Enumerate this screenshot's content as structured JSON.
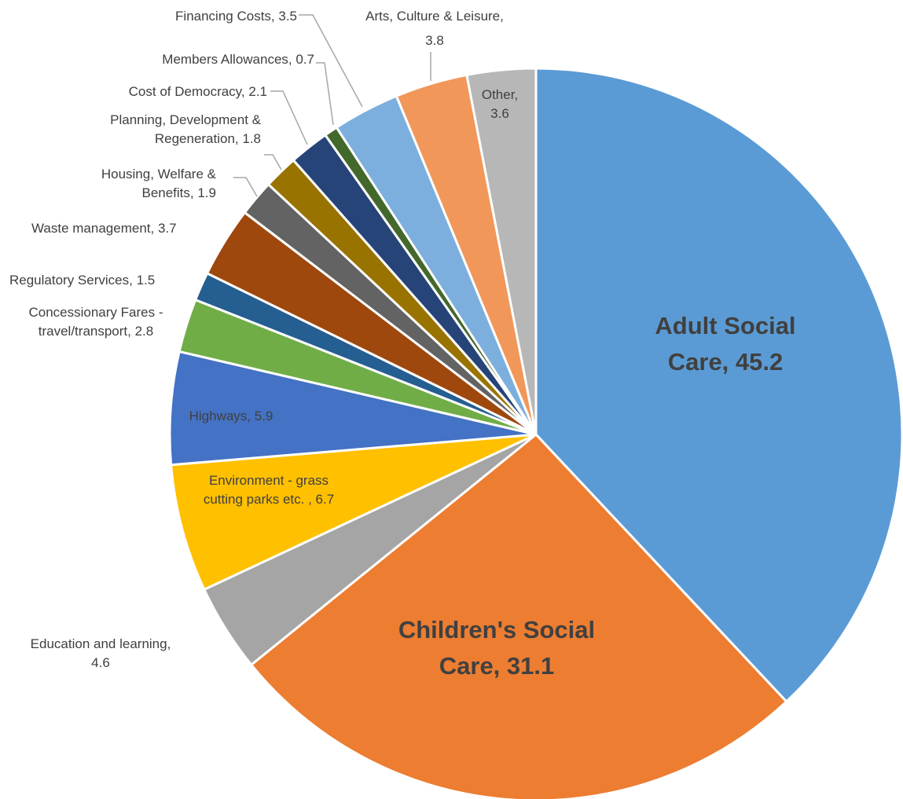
{
  "chart_data": {
    "type": "pie",
    "title": "",
    "grid": false,
    "legend": "none",
    "slices": [
      {
        "name": "Adult Social Care",
        "value": 45.2,
        "color": "#5b9bd5",
        "label_lines": [
          "Adult Social",
          "Care, 45.2"
        ]
      },
      {
        "name": "Children's Social Care",
        "value": 31.1,
        "color": "#ed7d31",
        "label_lines": [
          "Children's Social",
          "Care, 31.1"
        ]
      },
      {
        "name": "Education and learning",
        "value": 4.6,
        "color": "#a5a5a5",
        "label_lines": [
          "Education and learning,",
          "4.6"
        ]
      },
      {
        "name": "Environment - grass cutting parks etc.",
        "value": 6.7,
        "color": "#ffc000",
        "label_lines": [
          "Environment - grass",
          "cutting parks etc. , 6.7"
        ]
      },
      {
        "name": "Highways",
        "value": 5.9,
        "color": "#4472c4",
        "label_lines": [
          "Highways, 5.9"
        ]
      },
      {
        "name": "Concessionary Fares - travel/transport",
        "value": 2.8,
        "color": "#70ad47",
        "label_lines": [
          "Concessionary Fares -",
          "travel/transport, 2.8"
        ]
      },
      {
        "name": "Regulatory Services",
        "value": 1.5,
        "color": "#255e91",
        "label_lines": [
          "Regulatory Services, 1.5"
        ]
      },
      {
        "name": "Waste management",
        "value": 3.7,
        "color": "#9e480e",
        "label_lines": [
          "Waste management, 3.7"
        ]
      },
      {
        "name": "Housing, Welfare & Benefits",
        "value": 1.9,
        "color": "#636363",
        "label_lines": [
          "Housing, Welfare &",
          "Benefits, 1.9"
        ]
      },
      {
        "name": "Planning, Development & Regeneration",
        "value": 1.8,
        "color": "#997300",
        "label_lines": [
          "Planning, Development &",
          "Regeneration, 1.8"
        ]
      },
      {
        "name": "Cost of Democracy",
        "value": 2.1,
        "color": "#264478",
        "label_lines": [
          "Cost of Democracy, 2.1"
        ]
      },
      {
        "name": "Members Allowances",
        "value": 0.7,
        "color": "#43682b",
        "label_lines": [
          "Members Allowances, 0.7"
        ]
      },
      {
        "name": "Financing Costs",
        "value": 3.5,
        "color": "#7cafdd",
        "label_lines": [
          "Financing Costs, 3.5"
        ]
      },
      {
        "name": "Arts, Culture & Leisure",
        "value": 3.8,
        "color": "#f1975a",
        "label_lines": [
          "Arts, Culture & Leisure,",
          "3.8"
        ]
      },
      {
        "name": "Other",
        "value": 3.6,
        "color": "#b7b7b7",
        "label_lines": [
          "Other,",
          "3.6"
        ]
      }
    ]
  }
}
